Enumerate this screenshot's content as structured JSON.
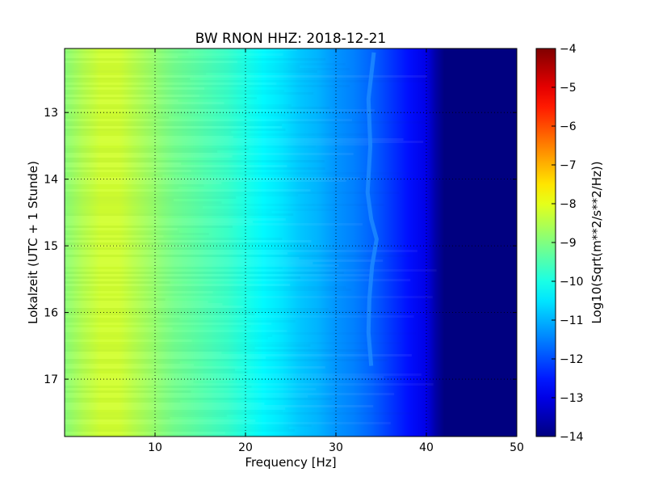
{
  "chart_data": {
    "type": "heatmap",
    "title": "BW RNON HHZ: 2018-12-21",
    "xlabel": "Frequency [Hz]",
    "ylabel": "Lokalzeit (UTC + 1 Stunde)",
    "colorbar_label": "Log10(Sqrt(m**2/s**2/Hz))",
    "colormap": "jet",
    "xlim": [
      0,
      50
    ],
    "ylim": [
      12.04,
      17.86
    ],
    "y_inverted": true,
    "clim": [
      -14,
      -4
    ],
    "grid": true,
    "x_ticks": [
      10,
      20,
      30,
      40,
      50
    ],
    "x_tick_labels": [
      "10",
      "20",
      "30",
      "40",
      "50"
    ],
    "y_ticks": [
      13,
      14,
      15,
      16,
      17
    ],
    "y_tick_labels": [
      "13",
      "14",
      "15",
      "16",
      "17"
    ],
    "colorbar_ticks": [
      -4,
      -5,
      -6,
      -7,
      -8,
      -9,
      -10,
      -11,
      -12,
      -13,
      -14
    ],
    "colorbar_tick_labels": [
      "−4",
      "−5",
      "−6",
      "−7",
      "−8",
      "−9",
      "−10",
      "−11",
      "−12",
      "−13",
      "−14"
    ],
    "frequency_profile": {
      "frequency_hz": [
        0,
        2,
        4,
        6,
        8,
        10,
        12,
        14,
        16,
        18,
        20,
        22,
        24,
        26,
        28,
        30,
        32,
        34,
        36,
        38,
        40,
        41,
        42,
        44,
        46,
        48,
        50
      ],
      "log10_amplitude": [
        -8.9,
        -8.5,
        -8.2,
        -8.2,
        -8.5,
        -8.8,
        -9.1,
        -9.3,
        -9.5,
        -9.7,
        -10.0,
        -10.3,
        -10.5,
        -10.8,
        -11.0,
        -11.3,
        -11.5,
        -11.8,
        -12.2,
        -12.6,
        -13.0,
        -13.6,
        -14.0,
        -14.0,
        -14.0,
        -14.0,
        -14.0
      ]
    },
    "spectral_line": {
      "time_h": [
        12.1,
        12.8,
        13.5,
        14.2,
        14.6,
        14.9,
        15.3,
        15.8,
        16.3,
        16.8
      ],
      "frequency_hz": [
        34.2,
        33.6,
        33.8,
        33.5,
        33.9,
        34.5,
        34.0,
        33.7,
        33.6,
        33.9
      ]
    }
  }
}
